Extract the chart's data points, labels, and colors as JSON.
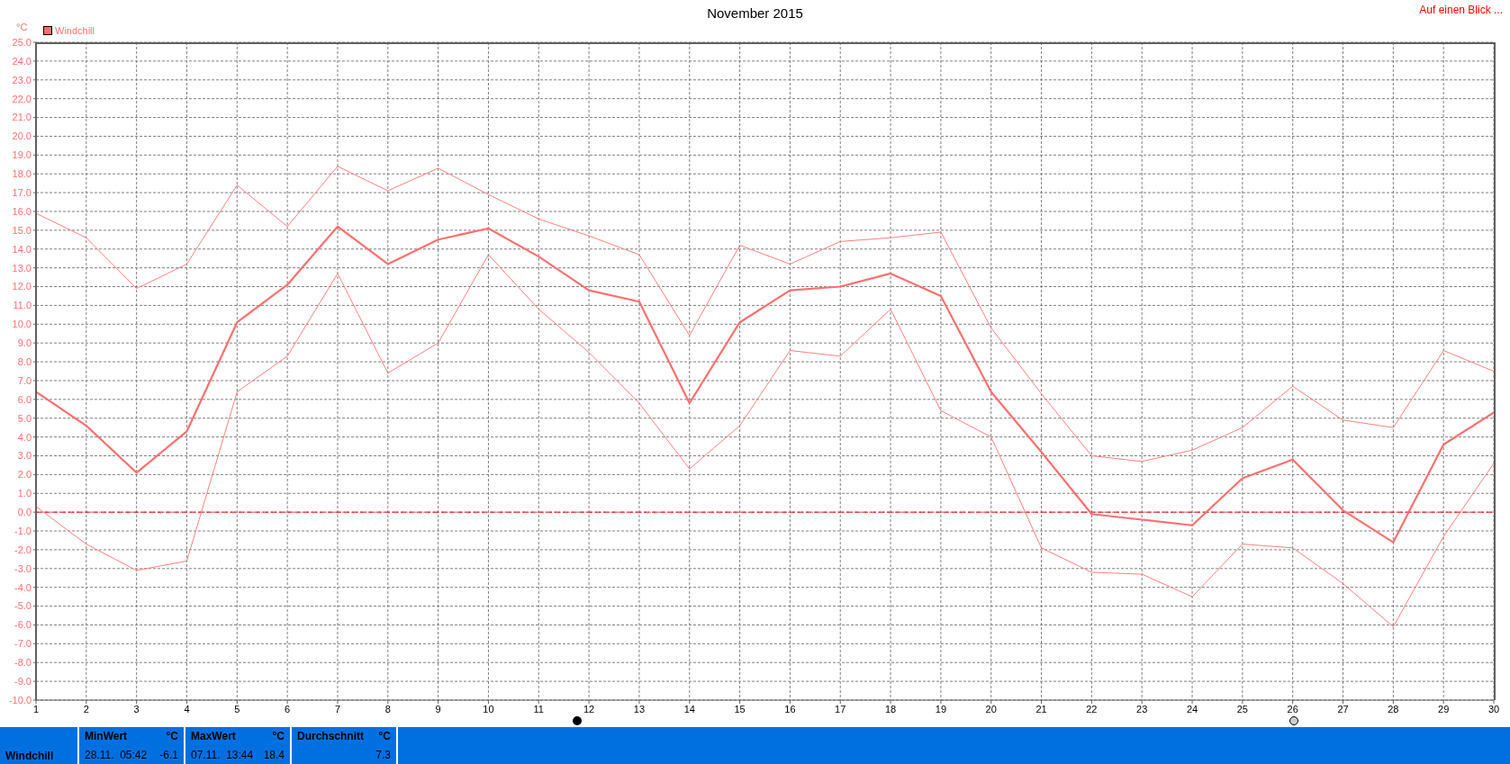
{
  "chart_data": {
    "type": "line",
    "title": "November 2015",
    "ylabel": "°C",
    "annotations": [
      "Auf einen Blick ...",
      "Windchill",
      "MinWert",
      "°C",
      "28.11.  05:42",
      "-6.1",
      "MaxWert",
      "°C",
      "07.11.  13:44",
      "18.4",
      "Durchschnitt",
      "°C",
      "7.3"
    ],
    "x": [
      1,
      2,
      3,
      4,
      5,
      6,
      7,
      8,
      9,
      10,
      11,
      12,
      13,
      14,
      15,
      16,
      17,
      18,
      19,
      20,
      21,
      22,
      23,
      24,
      25,
      26,
      27,
      28,
      29,
      30
    ],
    "series": [
      {
        "color": "#ff8080",
        "values": [
          15.9,
          14.6,
          11.9,
          13.2,
          17.4,
          15.2,
          18.4,
          17.1,
          18.3,
          16.9,
          15.6,
          14.7,
          13.7,
          9.4,
          14.2,
          13.2,
          14.4,
          14.6,
          14.9,
          9.8,
          6.3,
          3.0,
          2.7,
          3.3,
          4.5,
          6.7,
          4.9,
          4.5,
          8.6,
          7.5
        ]
      },
      {
        "name": "Windchill",
        "color": "#ff6f6f",
        "values": [
          6.4,
          4.6,
          2.1,
          4.3,
          10.1,
          12.1,
          15.2,
          13.2,
          14.5,
          15.1,
          13.6,
          11.8,
          11.2,
          5.8,
          10.1,
          11.8,
          12.0,
          12.7,
          11.5,
          6.4,
          3.2,
          -0.1,
          -0.4,
          -0.7,
          1.8,
          2.8,
          0.1,
          -1.6,
          3.6,
          5.3
        ]
      },
      {
        "color": "#ff8080",
        "values": [
          0.3,
          -1.7,
          -3.1,
          -2.6,
          6.4,
          8.3,
          12.7,
          7.4,
          9.0,
          13.7,
          10.8,
          8.5,
          5.8,
          2.3,
          4.6,
          8.6,
          8.3,
          10.8,
          5.4,
          4.0,
          -1.9,
          -3.2,
          -3.3,
          -4.5,
          -1.7,
          -1.9,
          -3.8,
          -6.1,
          -1.3,
          2.6
        ]
      }
    ],
    "xlim": [
      1,
      30
    ],
    "xticks": [
      1,
      2,
      3,
      4,
      5,
      6,
      7,
      8,
      9,
      10,
      11,
      12,
      13,
      14,
      15,
      16,
      17,
      18,
      19,
      20,
      21,
      22,
      23,
      24,
      25,
      26,
      27,
      28,
      29,
      30
    ],
    "ylim": [
      -10,
      25
    ],
    "yticks": [
      {
        "value": -10,
        "label": "-10.0"
      },
      {
        "value": -9,
        "label": "-9.0"
      },
      {
        "value": -8,
        "label": "-8.0"
      },
      {
        "value": -7,
        "label": "-7.0"
      },
      {
        "value": -6,
        "label": "-6.0"
      },
      {
        "value": -5,
        "label": "-5.0"
      },
      {
        "value": -4,
        "label": "-4.0"
      },
      {
        "value": -3,
        "label": "-3.0"
      },
      {
        "value": -2,
        "label": "-2.0"
      },
      {
        "value": -1,
        "label": "-1.0"
      },
      {
        "value": 0,
        "label": "0.0"
      },
      {
        "value": 1,
        "label": "1.0"
      },
      {
        "value": 2,
        "label": "2.0"
      },
      {
        "value": 3,
        "label": "3.0"
      },
      {
        "value": 4,
        "label": "4.0"
      },
      {
        "value": 5,
        "label": "5.0"
      },
      {
        "value": 6,
        "label": "6.0"
      },
      {
        "value": 7,
        "label": "7.0"
      },
      {
        "value": 8,
        "label": "8.0"
      },
      {
        "value": 9,
        "label": "9.0"
      },
      {
        "value": 10,
        "label": "10.0"
      },
      {
        "value": 11,
        "label": "11.0"
      },
      {
        "value": 12,
        "label": "12.0"
      },
      {
        "value": 13,
        "label": "13.0"
      },
      {
        "value": 14,
        "label": "14.0"
      },
      {
        "value": 15,
        "label": "15.0"
      },
      {
        "value": 16,
        "label": "16.0"
      },
      {
        "value": 17,
        "label": "17.0"
      },
      {
        "value": 18,
        "label": "18.0"
      },
      {
        "value": 19,
        "label": "19.0"
      },
      {
        "value": 20,
        "label": "20.0"
      },
      {
        "value": 21,
        "label": "21.0"
      },
      {
        "value": 22,
        "label": "22.0"
      },
      {
        "value": 23,
        "label": "23.0"
      },
      {
        "value": 24,
        "label": "24.0"
      },
      {
        "value": 25,
        "label": "25.0"
      }
    ],
    "ref_lines": [
      {
        "axis": "y",
        "value": 0,
        "color": "#ff0000",
        "line_style": "dashed"
      }
    ],
    "grid": true,
    "legend": "top left",
    "marker": "none",
    "line_style": "solid"
  }
}
